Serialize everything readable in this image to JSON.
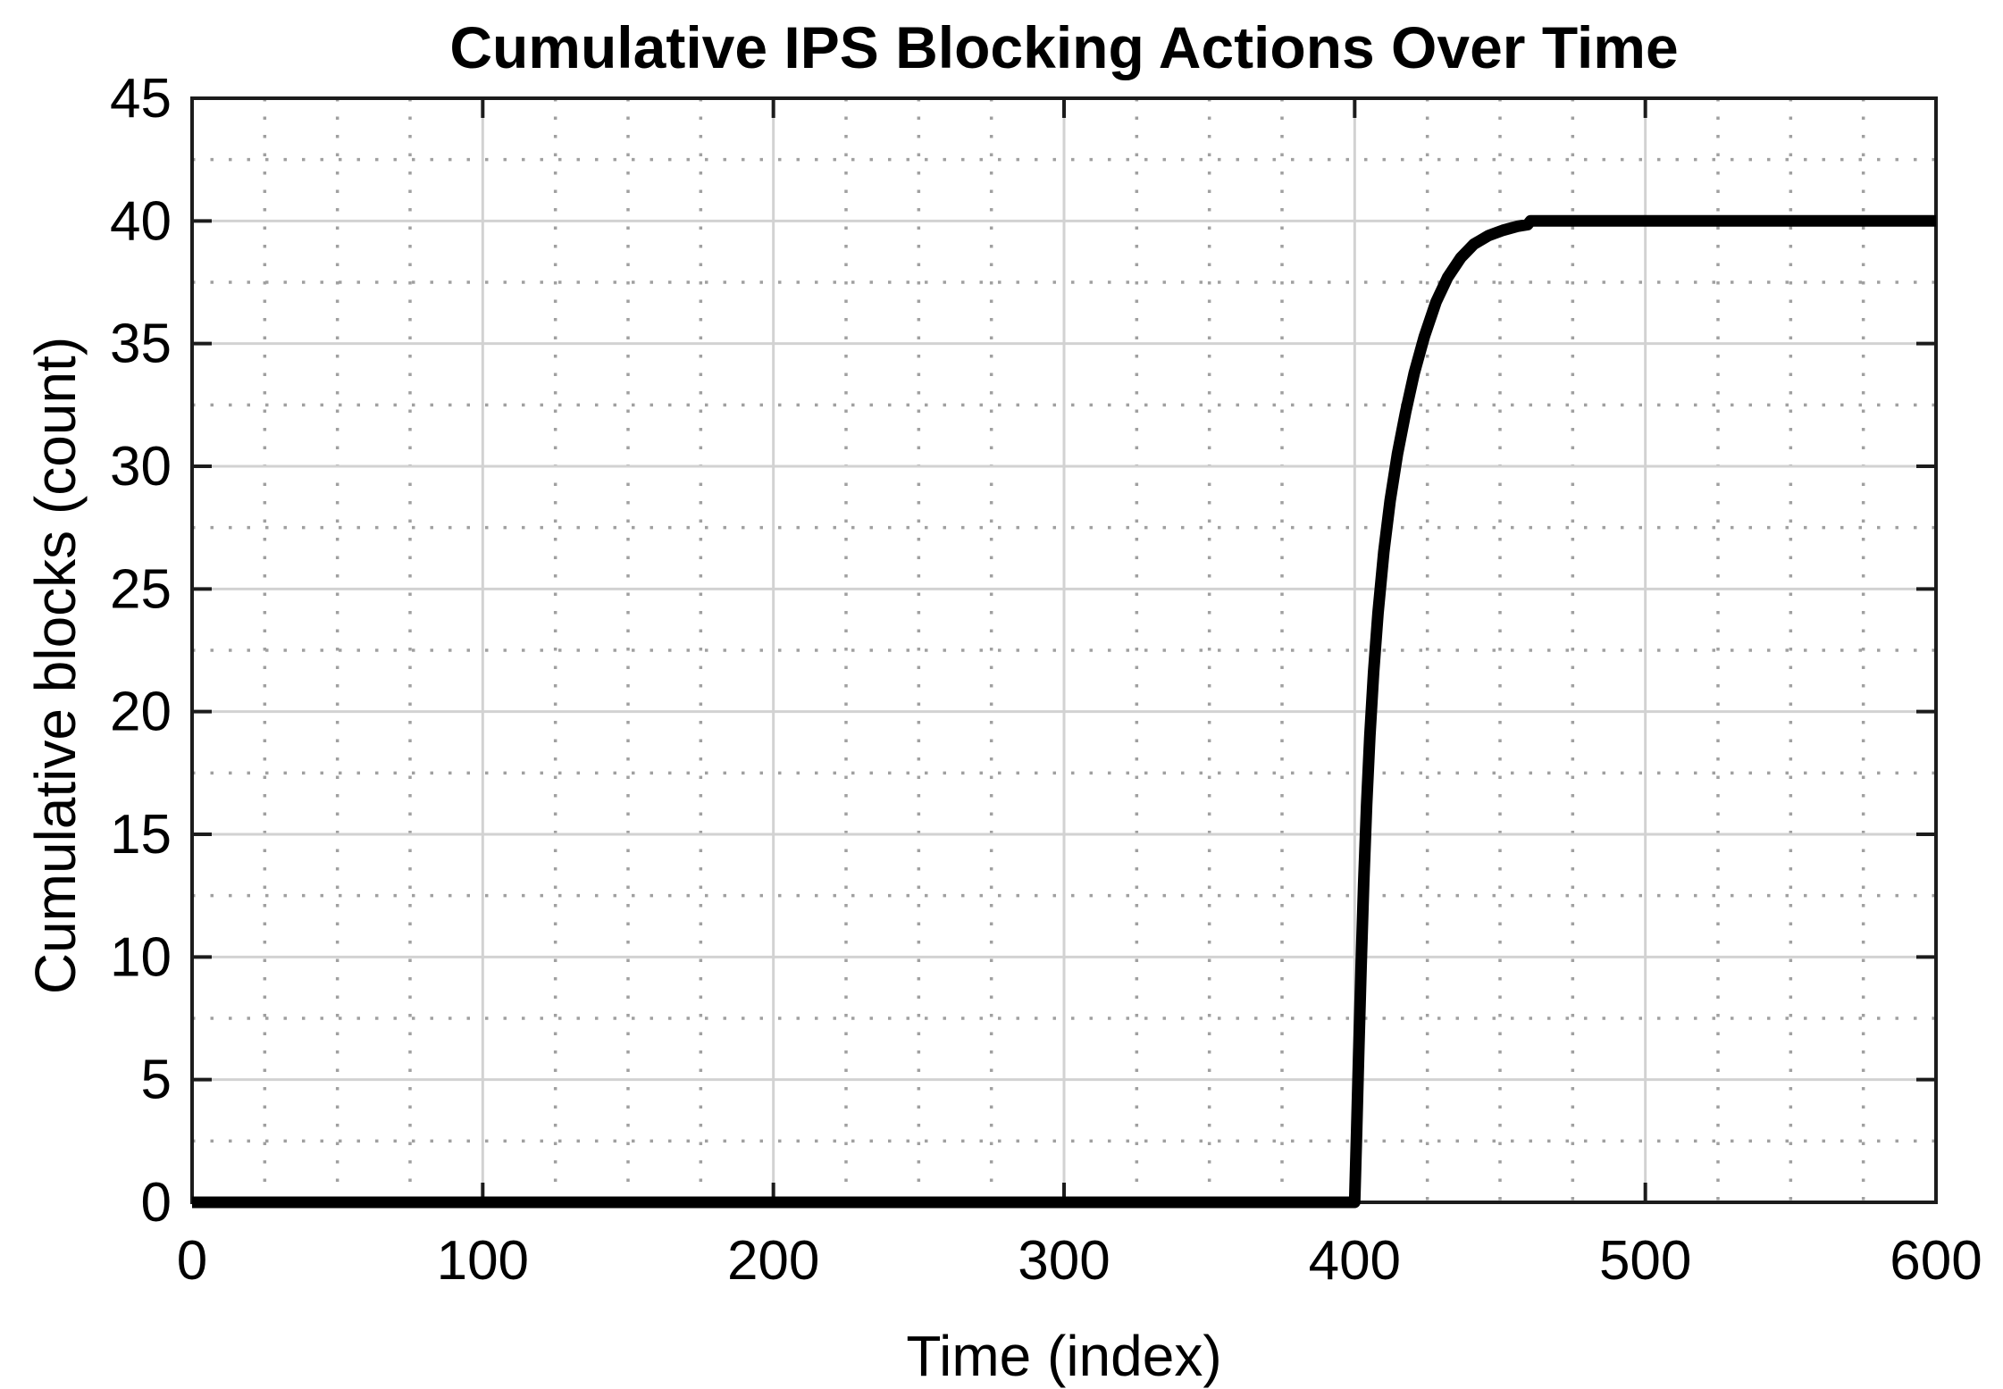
{
  "chart_data": {
    "type": "line",
    "title": "Cumulative IPS Blocking Actions Over Time",
    "xlabel": "Time (index)",
    "ylabel": "Cumulative blocks (count)",
    "xlim": [
      0,
      600
    ],
    "ylim": [
      0,
      45
    ],
    "x_ticks": [
      0,
      100,
      200,
      300,
      400,
      500,
      600
    ],
    "y_ticks": [
      0,
      5,
      10,
      15,
      20,
      25,
      30,
      35,
      40,
      45
    ],
    "x_minor_step": 25,
    "y_minor_step": 2.5,
    "x_major_step": 100,
    "y_major_step": 5,
    "grid": {
      "major": "solid",
      "minor": "dotted"
    },
    "legend": "none",
    "series": [
      {
        "name": "cumulative-blocks",
        "color": "#000000",
        "line_width": 13,
        "points": [
          [
            0,
            0
          ],
          [
            50,
            0
          ],
          [
            100,
            0
          ],
          [
            150,
            0
          ],
          [
            200,
            0
          ],
          [
            250,
            0
          ],
          [
            300,
            0
          ],
          [
            350,
            0
          ],
          [
            400,
            0
          ],
          [
            400.7,
            3
          ],
          [
            401.4,
            6.2
          ],
          [
            402.2,
            9.6
          ],
          [
            403.1,
            13
          ],
          [
            404.1,
            16.2
          ],
          [
            405.2,
            19
          ],
          [
            406.5,
            21.6
          ],
          [
            408,
            24
          ],
          [
            410,
            26.5
          ],
          [
            412.2,
            28.6
          ],
          [
            414.7,
            30.5
          ],
          [
            417.5,
            32.2
          ],
          [
            420.5,
            33.8
          ],
          [
            424,
            35.3
          ],
          [
            428,
            36.7
          ],
          [
            432,
            37.7
          ],
          [
            436.5,
            38.5
          ],
          [
            441,
            39.05
          ],
          [
            446,
            39.4
          ],
          [
            451,
            39.62
          ],
          [
            456,
            39.78
          ],
          [
            459.5,
            39.85
          ],
          [
            460.5,
            40
          ],
          [
            475,
            40
          ],
          [
            500,
            40
          ],
          [
            550,
            40
          ],
          [
            600,
            40
          ]
        ]
      }
    ]
  },
  "style": {
    "background": "#ffffff",
    "axis_color": "#1c1c1c",
    "text_color": "#000000",
    "major_grid_color": "#d2d2d2",
    "minor_grid_color": "#a0a0a0"
  }
}
